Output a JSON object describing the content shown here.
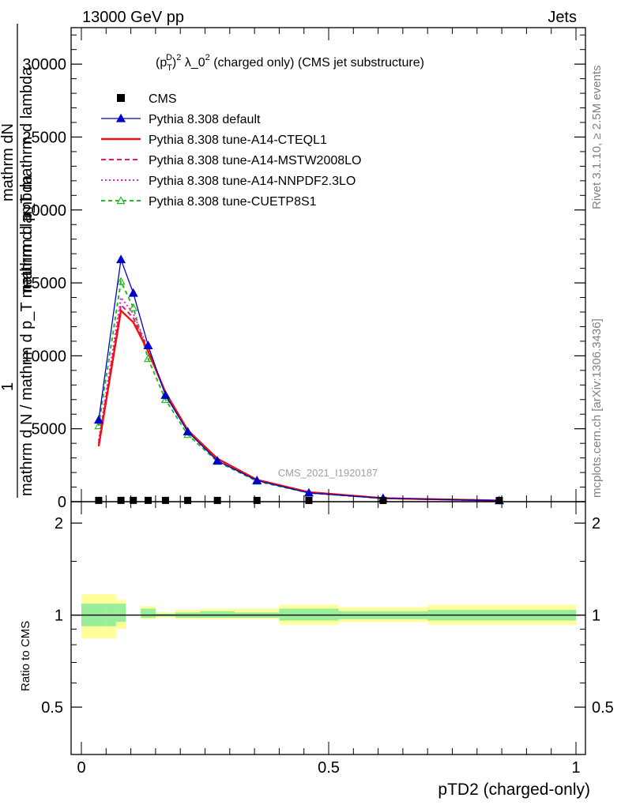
{
  "header": {
    "left": "13000 GeV pp",
    "right": "Jets"
  },
  "side_labels": {
    "rivet": "Rivet 3.1.10, ≥ 2.5M events",
    "mcplots": "mcplots.cern.ch [arXiv:1306.3436]"
  },
  "watermark": "CMS_2021_I1920187",
  "chart_data": [
    {
      "type": "line",
      "title": "(p_T^D)^2 λ_0^2 (charged only) (CMS jet substructure)",
      "title_parts": {
        "prefix": "(p",
        "sup_d": "D",
        "sub_t": "T",
        "mid": ")",
        "sup_2a": "2",
        "lambda": " λ_0",
        "sup_2b": "2",
        "suffix": " (charged only) (CMS jet substructure)"
      },
      "ylabel_top": "mathrm dN",
      "ylabel_top2": "mathrm d p_T mathrm d lambda",
      "ylabel_bottom": "mathrm d N / mathrm d p_T mathrm d lambda",
      "ylabel_one": "1",
      "xlim": [
        0,
        1
      ],
      "ylim": [
        0,
        32500
      ],
      "y_ticks": [
        0,
        5000,
        10000,
        15000,
        20000,
        25000,
        30000
      ],
      "y_tick_labels": [
        "0",
        "5000",
        "10000",
        "15000",
        "20000",
        "25000",
        "30000"
      ],
      "series": [
        {
          "name": "CMS",
          "style": "data",
          "color": "#000000",
          "x": [
            0.035,
            0.08,
            0.105,
            0.135,
            0.17,
            0.215,
            0.275,
            0.355,
            0.46,
            0.61,
            0.845
          ],
          "y": [
            8,
            9,
            9,
            8,
            7,
            6,
            5,
            4,
            3,
            2,
            1
          ]
        },
        {
          "name": "Pythia 8.308 default",
          "style": "solid-triangle",
          "color": "#0000cc",
          "x": [
            0.035,
            0.08,
            0.105,
            0.135,
            0.17,
            0.215,
            0.275,
            0.355,
            0.46,
            0.61,
            0.845
          ],
          "y": [
            5600,
            16600,
            14300,
            10700,
            7300,
            4800,
            2800,
            1450,
            600,
            230,
            70
          ]
        },
        {
          "name": "Pythia 8.308 tune-A14-CTEQL1",
          "style": "solid",
          "color": "#ee1111",
          "x": [
            0.035,
            0.08,
            0.105,
            0.135,
            0.17,
            0.215,
            0.275,
            0.355,
            0.46,
            0.61,
            0.845
          ],
          "y": [
            3800,
            13100,
            12300,
            10300,
            7500,
            4900,
            2950,
            1500,
            650,
            240,
            80
          ]
        },
        {
          "name": "Pythia 8.308 tune-A14-MSTW2008LO",
          "style": "dashed",
          "color": "#ee1177",
          "x": [
            0.035,
            0.08,
            0.105,
            0.135,
            0.17,
            0.215,
            0.275,
            0.355,
            0.46,
            0.61,
            0.845
          ],
          "y": [
            4000,
            13500,
            12600,
            10400,
            7500,
            4900,
            2950,
            1500,
            650,
            240,
            80
          ]
        },
        {
          "name": "Pythia 8.308 tune-A14-NNPDF2.3LO",
          "style": "dotted",
          "color": "#ee22cc",
          "x": [
            0.035,
            0.08,
            0.105,
            0.135,
            0.17,
            0.215,
            0.275,
            0.355,
            0.46,
            0.61,
            0.845
          ],
          "y": [
            4200,
            14000,
            12900,
            10500,
            7400,
            4850,
            2900,
            1500,
            640,
            240,
            80
          ]
        },
        {
          "name": "Pythia 8.308 tune-CUETP8S1",
          "style": "dashed-open-triangle",
          "color": "#22bb22",
          "x": [
            0.035,
            0.08,
            0.105,
            0.135,
            0.17,
            0.215,
            0.275,
            0.355,
            0.46,
            0.61,
            0.845
          ],
          "y": [
            5200,
            15100,
            13300,
            9800,
            7000,
            4600,
            2750,
            1400,
            600,
            230,
            70
          ]
        }
      ]
    },
    {
      "type": "area",
      "ylabel": "Ratio to CMS",
      "xlabel": "pTD2 (charged-only)",
      "xlim": [
        0,
        1
      ],
      "ylim": [
        0.35,
        2.35
      ],
      "y_ticks": [
        0.5,
        1,
        2
      ],
      "y_tick_labels": [
        "0.5",
        "1",
        "2"
      ],
      "x_tick_labels": [
        "0",
        "0.5",
        "1"
      ],
      "reference_line": 1,
      "bins": [
        {
          "lo": 0.0,
          "hi": 0.05,
          "yellow": [
            0.84,
            1.17
          ],
          "green": [
            0.92,
            1.09
          ]
        },
        {
          "lo": 0.05,
          "hi": 0.07,
          "yellow": [
            0.84,
            1.17
          ],
          "green": [
            0.92,
            1.09
          ]
        },
        {
          "lo": 0.07,
          "hi": 0.09,
          "yellow": [
            0.9,
            1.12
          ],
          "green": [
            0.95,
            1.09
          ]
        },
        {
          "lo": 0.12,
          "hi": 0.15,
          "yellow": [
            0.97,
            1.07
          ],
          "green": [
            0.98,
            1.05
          ]
        },
        {
          "lo": 0.15,
          "hi": 0.19,
          "yellow": [
            0.98,
            1.02
          ],
          "green": [
            0.99,
            1.01
          ]
        },
        {
          "lo": 0.19,
          "hi": 0.24,
          "yellow": [
            0.97,
            1.04
          ],
          "green": [
            0.98,
            1.02
          ]
        },
        {
          "lo": 0.24,
          "hi": 0.31,
          "yellow": [
            0.97,
            1.05
          ],
          "green": [
            0.98,
            1.03
          ]
        },
        {
          "lo": 0.31,
          "hi": 0.4,
          "yellow": [
            0.97,
            1.05
          ],
          "green": [
            0.98,
            1.02
          ]
        },
        {
          "lo": 0.4,
          "hi": 0.52,
          "yellow": [
            0.93,
            1.08
          ],
          "green": [
            0.96,
            1.05
          ]
        },
        {
          "lo": 0.52,
          "hi": 0.7,
          "yellow": [
            0.95,
            1.06
          ],
          "green": [
            0.97,
            1.03
          ]
        },
        {
          "lo": 0.7,
          "hi": 1.0,
          "yellow": [
            0.93,
            1.08
          ],
          "green": [
            0.96,
            1.04
          ]
        }
      ],
      "colors": {
        "yellow": "#ffff99",
        "green": "#99ee99"
      }
    }
  ]
}
